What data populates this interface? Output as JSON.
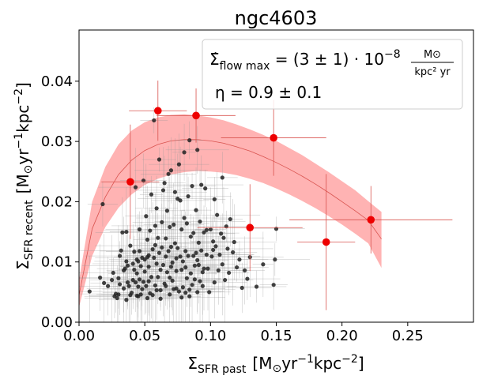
{
  "chart_data": {
    "type": "scatter",
    "title": "ngc4603",
    "xlabel": {
      "base": "Σ",
      "sub": "SFR past",
      "unit_pre": "[M",
      "sun": "⊙",
      "unit_mid": "yr",
      "sup1": "−1",
      "unit_mid2": "kpc",
      "sup2": "−2",
      "unit_post": "]"
    },
    "ylabel": {
      "base": "Σ",
      "sub": "SFR recent",
      "unit_pre": "[M",
      "sun": "⊙",
      "unit_mid": "yr",
      "sup1": "−1",
      "unit_mid2": "kpc",
      "sup2": "−2",
      "unit_post": "]"
    },
    "xlim": [
      0,
      0.3
    ],
    "ylim": [
      0,
      0.0485
    ],
    "xticks": [
      0.0,
      0.05,
      0.1,
      0.15,
      0.2,
      0.25
    ],
    "xtick_labels": [
      "0.00",
      "0.05",
      "0.10",
      "0.15",
      "0.20",
      "0.25"
    ],
    "yticks": [
      0.0,
      0.01,
      0.02,
      0.03,
      0.04
    ],
    "ytick_labels": [
      "0.00",
      "0.01",
      "0.02",
      "0.03",
      "0.04"
    ],
    "annotation": {
      "line1_symbol": "Σ̇",
      "line1_sub": "flow max",
      "line1_eq": " = (3 ± 1) · 10",
      "line1_exp": "−8",
      "line1_frac_num": "M⊙",
      "line1_frac_den": "kpc² yr",
      "line2": "η = 0.9 ± 0.1"
    },
    "model_band": {
      "color": "#ffb3b3",
      "x": [
        0.0,
        0.01,
        0.02,
        0.03,
        0.04,
        0.05,
        0.06,
        0.07,
        0.08,
        0.09,
        0.1,
        0.11,
        0.12,
        0.13,
        0.14,
        0.15,
        0.16,
        0.17,
        0.18,
        0.19,
        0.2,
        0.21,
        0.22,
        0.23
      ],
      "center": [
        0.0045,
        0.0155,
        0.0208,
        0.0245,
        0.0269,
        0.0285,
        0.0295,
        0.0301,
        0.0303,
        0.0303,
        0.0301,
        0.0297,
        0.0291,
        0.0284,
        0.0275,
        0.0265,
        0.0254,
        0.0242,
        0.0229,
        0.0215,
        0.02,
        0.0185,
        0.0169,
        0.0138
      ],
      "upper": [
        0.007,
        0.02,
        0.0258,
        0.0295,
        0.0318,
        0.0332,
        0.034,
        0.0344,
        0.0345,
        0.0343,
        0.034,
        0.0335,
        0.0328,
        0.032,
        0.0311,
        0.0301,
        0.0289,
        0.0277,
        0.0263,
        0.0249,
        0.0234,
        0.0219,
        0.0201,
        0.0183
      ],
      "lower": [
        0.0025,
        0.011,
        0.0158,
        0.019,
        0.0212,
        0.0228,
        0.0238,
        0.0245,
        0.0249,
        0.0251,
        0.025,
        0.0248,
        0.0244,
        0.0238,
        0.0231,
        0.0222,
        0.0212,
        0.0201,
        0.0189,
        0.0176,
        0.0162,
        0.0147,
        0.0131,
        0.009
      ]
    },
    "red_points": [
      {
        "x": 0.039,
        "y": 0.0233,
        "xerr": 0.022,
        "yerr": 0.0095
      },
      {
        "x": 0.06,
        "y": 0.0351,
        "xerr": 0.022,
        "yerr": 0.005
      },
      {
        "x": 0.089,
        "y": 0.0343,
        "xerr": 0.03,
        "yerr": 0.0045
      },
      {
        "x": 0.13,
        "y": 0.0157,
        "xerr": 0.04,
        "yerr": 0.0072
      },
      {
        "x": 0.148,
        "y": 0.0306,
        "xerr": 0.04,
        "yerr": 0.0063
      },
      {
        "x": 0.188,
        "y": 0.0133,
        "xerr": 0.022,
        "yerr": 0.0113
      },
      {
        "x": 0.222,
        "y": 0.017,
        "xerr": 0.062,
        "yerr": 0.0056
      }
    ],
    "black_points": [
      [
        0.008,
        0.0051
      ],
      [
        0.018,
        0.0196
      ],
      [
        0.016,
        0.0074
      ],
      [
        0.019,
        0.0065
      ],
      [
        0.022,
        0.006
      ],
      [
        0.025,
        0.007
      ],
      [
        0.026,
        0.0082
      ],
      [
        0.027,
        0.0043
      ],
      [
        0.028,
        0.0047
      ],
      [
        0.029,
        0.004
      ],
      [
        0.03,
        0.0046
      ],
      [
        0.03,
        0.0073
      ],
      [
        0.031,
        0.0063
      ],
      [
        0.032,
        0.0119
      ],
      [
        0.033,
        0.0149
      ],
      [
        0.034,
        0.0056
      ],
      [
        0.034,
        0.0086
      ],
      [
        0.035,
        0.0089
      ],
      [
        0.036,
        0.0101
      ],
      [
        0.036,
        0.015
      ],
      [
        0.037,
        0.0066
      ],
      [
        0.038,
        0.006
      ],
      [
        0.039,
        0.0045
      ],
      [
        0.04,
        0.0049
      ],
      [
        0.041,
        0.007
      ],
      [
        0.041,
        0.0097
      ],
      [
        0.042,
        0.0087
      ],
      [
        0.042,
        0.0117
      ],
      [
        0.043,
        0.0066
      ],
      [
        0.043,
        0.0224
      ],
      [
        0.044,
        0.0044
      ],
      [
        0.044,
        0.0104
      ],
      [
        0.045,
        0.0101
      ],
      [
        0.045,
        0.0059
      ],
      [
        0.046,
        0.0071
      ],
      [
        0.046,
        0.0118
      ],
      [
        0.047,
        0.0093
      ],
      [
        0.047,
        0.0046
      ],
      [
        0.048,
        0.0107
      ],
      [
        0.048,
        0.0055
      ],
      [
        0.049,
        0.0067
      ],
      [
        0.049,
        0.0235
      ],
      [
        0.05,
        0.0104
      ],
      [
        0.05,
        0.0084
      ],
      [
        0.051,
        0.0176
      ],
      [
        0.051,
        0.006
      ],
      [
        0.052,
        0.0108
      ],
      [
        0.052,
        0.0137
      ],
      [
        0.053,
        0.0092
      ],
      [
        0.053,
        0.0068
      ],
      [
        0.054,
        0.0048
      ],
      [
        0.054,
        0.0152
      ],
      [
        0.055,
        0.0212
      ],
      [
        0.055,
        0.0075
      ],
      [
        0.056,
        0.0045
      ],
      [
        0.056,
        0.0121
      ],
      [
        0.057,
        0.0107
      ],
      [
        0.057,
        0.0335
      ],
      [
        0.058,
        0.0061
      ],
      [
        0.058,
        0.016
      ],
      [
        0.059,
        0.0097
      ],
      [
        0.059,
        0.0189
      ],
      [
        0.06,
        0.0075
      ],
      [
        0.06,
        0.014
      ],
      [
        0.061,
        0.0115
      ],
      [
        0.061,
        0.027
      ],
      [
        0.062,
        0.0087
      ],
      [
        0.062,
        0.0053
      ],
      [
        0.063,
        0.0166
      ],
      [
        0.063,
        0.0124
      ],
      [
        0.064,
        0.0219
      ],
      [
        0.064,
        0.0095
      ],
      [
        0.065,
        0.0064
      ],
      [
        0.065,
        0.0231
      ],
      [
        0.066,
        0.0109
      ],
      [
        0.066,
        0.006
      ],
      [
        0.067,
        0.0185
      ],
      [
        0.067,
        0.0083
      ],
      [
        0.068,
        0.0246
      ],
      [
        0.068,
        0.0118
      ],
      [
        0.069,
        0.0074
      ],
      [
        0.069,
        0.0158
      ],
      [
        0.07,
        0.0252
      ],
      [
        0.07,
        0.0092
      ],
      [
        0.071,
        0.0099
      ],
      [
        0.071,
        0.0069
      ],
      [
        0.072,
        0.0162
      ],
      [
        0.072,
        0.0055
      ],
      [
        0.073,
        0.0216
      ],
      [
        0.073,
        0.0131
      ],
      [
        0.074,
        0.0085
      ],
      [
        0.074,
        0.0056
      ],
      [
        0.075,
        0.0123
      ],
      [
        0.075,
        0.0205
      ],
      [
        0.076,
        0.0262
      ],
      [
        0.076,
        0.0051
      ],
      [
        0.077,
        0.0109
      ],
      [
        0.077,
        0.0202
      ],
      [
        0.078,
        0.0154
      ],
      [
        0.078,
        0.0087
      ],
      [
        0.079,
        0.0058
      ],
      [
        0.079,
        0.0101
      ],
      [
        0.08,
        0.0173
      ],
      [
        0.08,
        0.0282
      ],
      [
        0.081,
        0.0118
      ],
      [
        0.081,
        0.0049
      ],
      [
        0.082,
        0.0164
      ],
      [
        0.082,
        0.0073
      ],
      [
        0.083,
        0.0209
      ],
      [
        0.083,
        0.011
      ],
      [
        0.084,
        0.0054
      ],
      [
        0.084,
        0.0302
      ],
      [
        0.085,
        0.0142
      ],
      [
        0.085,
        0.0081
      ],
      [
        0.086,
        0.0226
      ],
      [
        0.086,
        0.0062
      ],
      [
        0.087,
        0.011
      ],
      [
        0.087,
        0.0148
      ],
      [
        0.088,
        0.0094
      ],
      [
        0.088,
        0.0071
      ],
      [
        0.089,
        0.0186
      ],
      [
        0.089,
        0.0115
      ],
      [
        0.09,
        0.0286
      ],
      [
        0.09,
        0.005
      ],
      [
        0.091,
        0.0132
      ],
      [
        0.091,
        0.0095
      ],
      [
        0.092,
        0.0167
      ],
      [
        0.092,
        0.0068
      ],
      [
        0.093,
        0.0228
      ],
      [
        0.093,
        0.0119
      ],
      [
        0.094,
        0.0083
      ],
      [
        0.094,
        0.006
      ],
      [
        0.095,
        0.0149
      ],
      [
        0.096,
        0.0222
      ],
      [
        0.097,
        0.0112
      ],
      [
        0.098,
        0.0089
      ],
      [
        0.099,
        0.005
      ],
      [
        0.1,
        0.0154
      ],
      [
        0.101,
        0.0109
      ],
      [
        0.102,
        0.0134
      ],
      [
        0.103,
        0.0066
      ],
      [
        0.104,
        0.0126
      ],
      [
        0.105,
        0.0178
      ],
      [
        0.106,
        0.0086
      ],
      [
        0.107,
        0.0112
      ],
      [
        0.108,
        0.0147
      ],
      [
        0.109,
        0.0096
      ],
      [
        0.11,
        0.014
      ],
      [
        0.111,
        0.007
      ],
      [
        0.112,
        0.0159
      ],
      [
        0.113,
        0.0122
      ],
      [
        0.114,
        0.0082
      ],
      [
        0.115,
        0.0171
      ],
      [
        0.117,
        0.0116
      ],
      [
        0.118,
        0.0133
      ],
      [
        0.12,
        0.0091
      ],
      [
        0.122,
        0.0104
      ],
      [
        0.124,
        0.0057
      ],
      [
        0.126,
        0.0086
      ],
      [
        0.128,
        0.0072
      ],
      [
        0.13,
        0.0108
      ],
      [
        0.135,
        0.0059
      ],
      [
        0.14,
        0.0096
      ],
      [
        0.15,
        0.0155
      ],
      [
        0.149,
        0.0104
      ],
      [
        0.148,
        0.0062
      ],
      [
        0.036,
        0.0037
      ],
      [
        0.045,
        0.0043
      ],
      [
        0.062,
        0.0039
      ],
      [
        0.078,
        0.0041
      ],
      [
        0.052,
        0.004
      ],
      [
        0.069,
        0.0046
      ],
      [
        0.084,
        0.0043
      ],
      [
        0.031,
        0.011
      ],
      [
        0.039,
        0.0127
      ],
      [
        0.058,
        0.0128
      ],
      [
        0.046,
        0.0154
      ],
      [
        0.095,
        0.0089
      ],
      [
        0.103,
        0.0204
      ],
      [
        0.109,
        0.024
      ],
      [
        0.097,
        0.0153
      ],
      [
        0.102,
        0.012
      ],
      [
        0.09,
        0.0103
      ],
      [
        0.081,
        0.0091
      ],
      [
        0.074,
        0.0106
      ],
      [
        0.07,
        0.0125
      ],
      [
        0.066,
        0.0139
      ],
      [
        0.059,
        0.0053
      ],
      [
        0.053,
        0.0111
      ],
      [
        0.044,
        0.0081
      ],
      [
        0.037,
        0.0094
      ]
    ]
  }
}
